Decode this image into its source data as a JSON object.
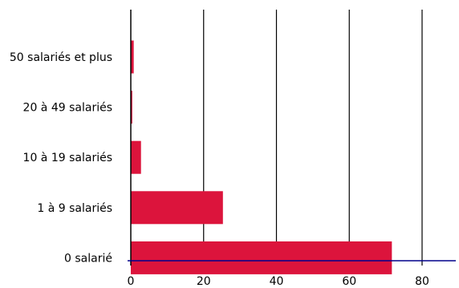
{
  "chart_data": {
    "type": "bar",
    "orientation": "horizontal",
    "title": "",
    "xlabel": "",
    "ylabel": "",
    "categories": [
      "50 salariés et plus",
      "20 à 49 salariés",
      "10 à 19 salariés",
      "1 à 9 salariés",
      "0 salarié"
    ],
    "values": [
      0.8,
      0.4,
      2.8,
      25.3,
      71.7
    ],
    "xlim": [
      0,
      90
    ],
    "x_ticks": [
      0,
      20,
      40,
      60,
      80
    ],
    "x_tick_labels": [
      "0",
      "20",
      "40",
      "60",
      "80"
    ],
    "grid": "vertical",
    "legend": "none",
    "bar_color": "#dc143c",
    "axis_color": "#00008b",
    "grid_color": "#000000"
  }
}
